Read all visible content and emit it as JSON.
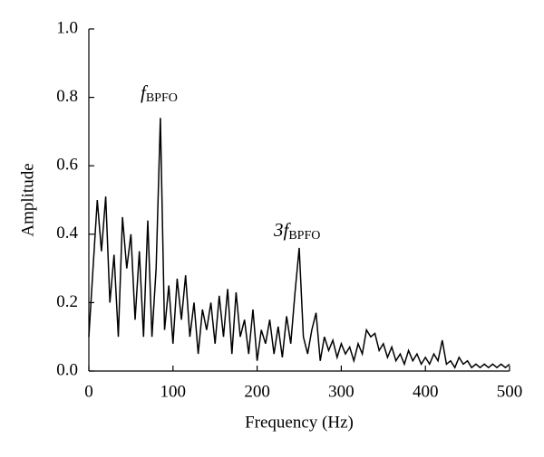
{
  "chart_data": {
    "type": "line",
    "xlabel": "Frequency (Hz)",
    "ylabel": "Amplitude",
    "annotations": [
      {
        "text": "f",
        "subscript": "BPFO"
      },
      {
        "text": "3f",
        "subscript": "BPFO"
      }
    ],
    "x": [
      0,
      5,
      10,
      15,
      20,
      25,
      30,
      35,
      40,
      45,
      50,
      55,
      60,
      65,
      70,
      75,
      80,
      85,
      90,
      95,
      100,
      105,
      110,
      115,
      120,
      125,
      130,
      135,
      140,
      145,
      150,
      155,
      160,
      165,
      170,
      175,
      180,
      185,
      190,
      195,
      200,
      205,
      210,
      215,
      220,
      225,
      230,
      235,
      240,
      245,
      250,
      255,
      260,
      265,
      270,
      275,
      280,
      285,
      290,
      295,
      300,
      305,
      310,
      315,
      320,
      325,
      330,
      335,
      340,
      345,
      350,
      355,
      360,
      365,
      370,
      375,
      380,
      385,
      390,
      395,
      400,
      405,
      410,
      415,
      420,
      425,
      430,
      435,
      440,
      445,
      450,
      455,
      460,
      465,
      470,
      475,
      480,
      485,
      490,
      495,
      500
    ],
    "series": [
      {
        "color": "#000000",
        "values": [
          0.1,
          0.3,
          0.5,
          0.35,
          0.51,
          0.2,
          0.34,
          0.1,
          0.45,
          0.3,
          0.4,
          0.15,
          0.35,
          0.1,
          0.44,
          0.1,
          0.3,
          0.74,
          0.12,
          0.25,
          0.08,
          0.27,
          0.15,
          0.28,
          0.1,
          0.2,
          0.05,
          0.18,
          0.12,
          0.2,
          0.08,
          0.22,
          0.1,
          0.24,
          0.05,
          0.23,
          0.1,
          0.15,
          0.05,
          0.18,
          0.03,
          0.12,
          0.08,
          0.15,
          0.05,
          0.13,
          0.04,
          0.16,
          0.08,
          0.23,
          0.36,
          0.1,
          0.05,
          0.12,
          0.17,
          0.03,
          0.1,
          0.06,
          0.09,
          0.04,
          0.08,
          0.05,
          0.07,
          0.03,
          0.08,
          0.05,
          0.12,
          0.1,
          0.11,
          0.06,
          0.08,
          0.04,
          0.07,
          0.03,
          0.05,
          0.02,
          0.06,
          0.03,
          0.05,
          0.02,
          0.04,
          0.02,
          0.05,
          0.03,
          0.09,
          0.02,
          0.03,
          0.01,
          0.04,
          0.02,
          0.03,
          0.01,
          0.02,
          0.01,
          0.02,
          0.01,
          0.02,
          0.01,
          0.02,
          0.01,
          0.02
        ]
      }
    ],
    "xlim": [
      0,
      500
    ],
    "xticks": [
      0,
      100,
      200,
      300,
      400,
      500
    ],
    "ylim": [
      0,
      1
    ],
    "yticks": [
      {
        "value": 0,
        "label": "0.0"
      },
      0.2,
      0.4,
      0.6,
      0.8,
      {
        "value": 1,
        "label": "1.0"
      }
    ],
    "grid": false
  }
}
